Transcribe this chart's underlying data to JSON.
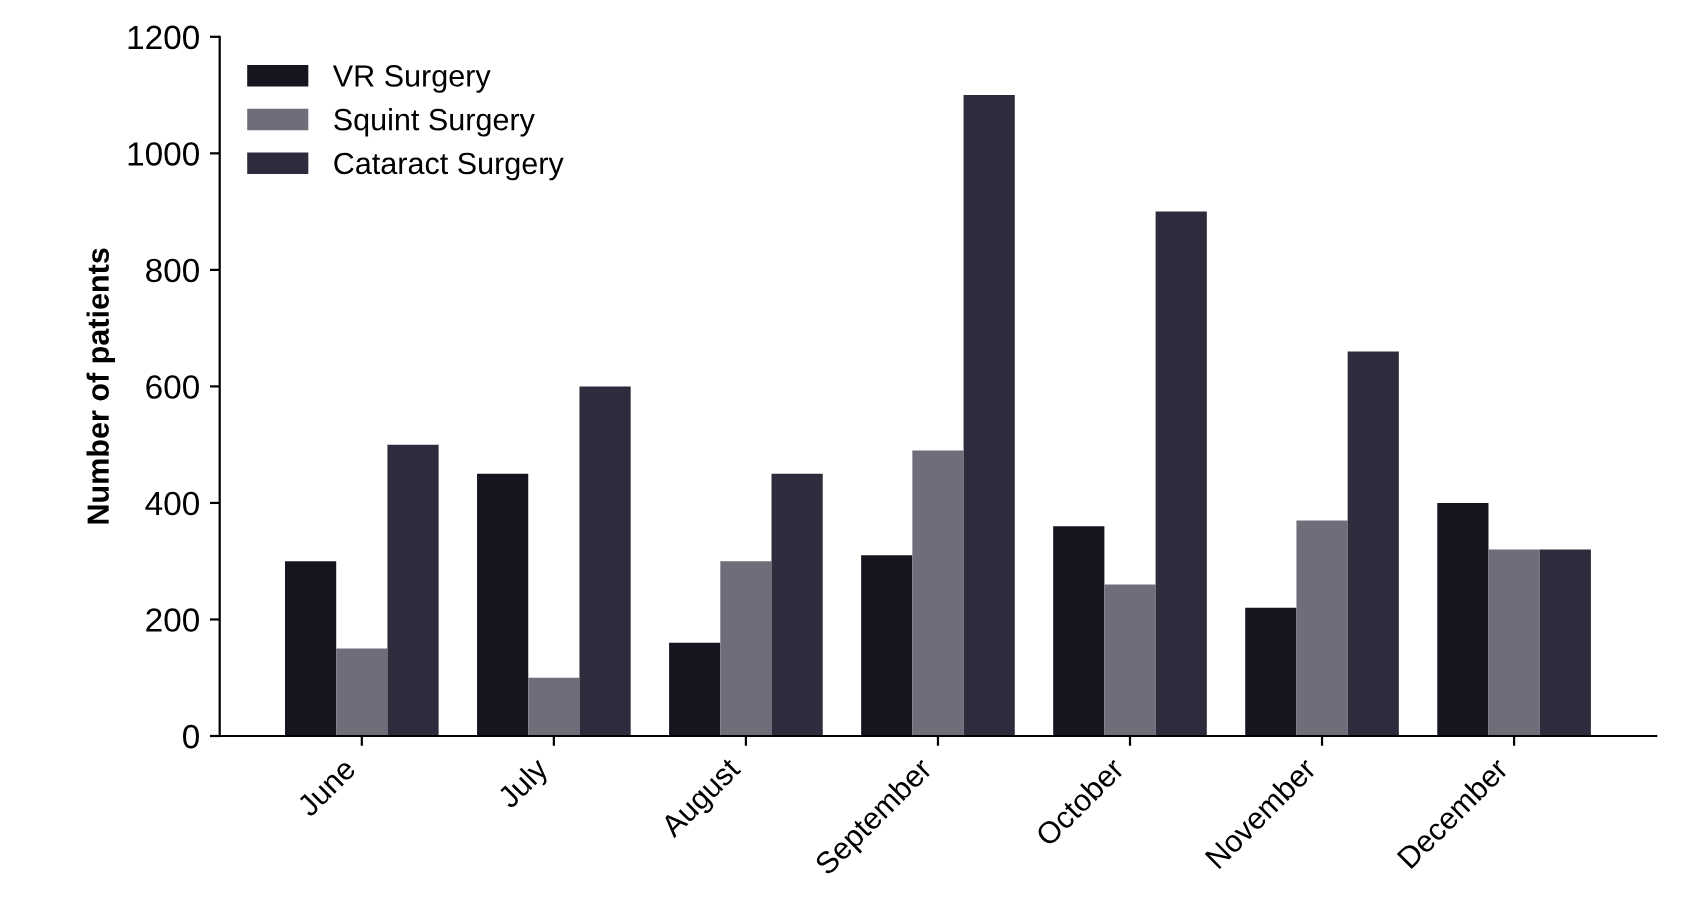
{
  "chart_data": {
    "type": "bar",
    "ylabel": "Number of patients",
    "categories": [
      "June",
      "July",
      "August",
      "September",
      "October",
      "November",
      "December"
    ],
    "series": [
      {
        "name": "VR Surgery",
        "color": "#16151f",
        "values": [
          300,
          450,
          160,
          310,
          360,
          220,
          400
        ]
      },
      {
        "name": "Squint Surgery",
        "color": "#6e6e7a",
        "values": [
          150,
          100,
          300,
          490,
          260,
          370,
          320
        ]
      },
      {
        "name": "Cataract Surgery",
        "color": "#2c2c3c",
        "values": [
          500,
          600,
          450,
          1100,
          900,
          660,
          320
        ]
      }
    ],
    "ylim": [
      0,
      1200
    ],
    "yticks": [
      0,
      200,
      400,
      600,
      800,
      1000,
      1200
    ],
    "grid": false,
    "legend": "top left"
  }
}
